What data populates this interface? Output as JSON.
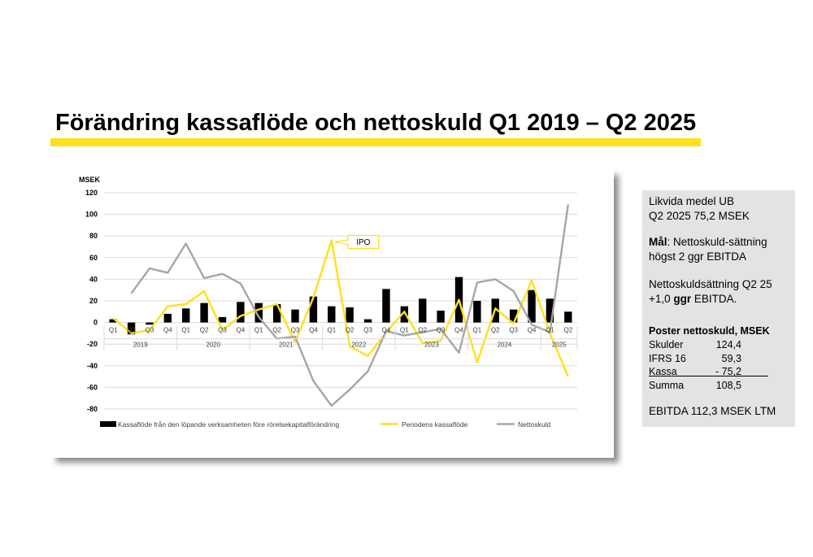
{
  "slide": {
    "title": "Förändring kassaflöde och nettoskuld Q1 2019 – Q2 2025"
  },
  "side_panel": {
    "likvida_line1": "Likvida medel UB",
    "likvida_line2": "Q2 2025 75,2 MSEK",
    "mal_bold": "Mål",
    "mal_rest": ": Nettoskuld-sättning",
    "mal_line2": "högst 2 ggr EBITDA",
    "nettoskuld_line1": "Nettoskuldsättning Q2 25",
    "nettoskuld_line2_pre": "+1,0 ",
    "nettoskuld_line2_bold": "ggr",
    "nettoskuld_line2_post": " EBITDA.",
    "poster_heading": "Poster nettoskuld, MSEK",
    "poster_rows": [
      {
        "label": "Skulder",
        "value": "124,4"
      },
      {
        "label": "IFRS 16",
        "value": "59,3"
      },
      {
        "label": "Kassa",
        "value": "- 75,2"
      },
      {
        "label": "Summa",
        "value": "108,5"
      }
    ],
    "ebitda": "EBITDA 112,3 MSEK LTM"
  },
  "chart_data": {
    "type": "bar",
    "unit_label": "MSEK",
    "ylim": [
      -80,
      120
    ],
    "yticks": [
      -80,
      -60,
      -40,
      -20,
      0,
      20,
      40,
      60,
      80,
      100,
      120
    ],
    "grid": true,
    "legend_position": "bottom",
    "quarter_labels": [
      "Q1",
      "Q2",
      "Q3",
      "Q4",
      "Q1",
      "Q2",
      "Q3",
      "Q4",
      "Q1",
      "Q2",
      "Q3",
      "Q4",
      "Q1",
      "Q2",
      "Q3",
      "Q4",
      "Q1",
      "Q2",
      "Q3",
      "Q4",
      "Q1",
      "Q2",
      "Q3",
      "Q4",
      "Q1",
      "Q2"
    ],
    "year_groups": [
      {
        "label": "2019",
        "start": 0,
        "count": 4
      },
      {
        "label": "2020",
        "start": 4,
        "count": 4
      },
      {
        "label": "2021",
        "start": 8,
        "count": 4
      },
      {
        "label": "2022",
        "start": 12,
        "count": 4
      },
      {
        "label": "2023",
        "start": 16,
        "count": 4
      },
      {
        "label": "2024",
        "start": 20,
        "count": 4
      },
      {
        "label": "2025",
        "start": 24,
        "count": 2
      }
    ],
    "series": [
      {
        "name": "Kassaflöde från den löpande verksamheten före rörelsekapitalförändring",
        "kind": "bar",
        "color": "#000000",
        "values": [
          3,
          -11,
          -2,
          8,
          13,
          18,
          5,
          19,
          18,
          17,
          12,
          24,
          15,
          14,
          3,
          31,
          15,
          22,
          11,
          42,
          20,
          22,
          12,
          30,
          22,
          10
        ]
      },
      {
        "name": "Periodens kassaflöde",
        "kind": "line",
        "color": "#FFE01B",
        "values": [
          4,
          -10,
          -7,
          15,
          17,
          29,
          -7,
          6,
          12,
          17,
          -18,
          23,
          76,
          -22,
          -31,
          -9,
          10,
          -19,
          -17,
          21,
          -37,
          13,
          -1,
          39,
          -10,
          -50
        ]
      },
      {
        "name": "Nettoskuld",
        "kind": "line",
        "color": "#A6A6A6",
        "values": [
          null,
          27,
          50,
          46,
          73,
          41,
          45,
          36,
          5,
          -15,
          -13,
          -54,
          -77,
          -62,
          -45,
          -8,
          -12,
          -9,
          -6,
          -28,
          37,
          40,
          29,
          -2,
          -9,
          109
        ]
      }
    ],
    "annotations": [
      {
        "text": "IPO",
        "index": 12,
        "value": 76
      }
    ]
  }
}
